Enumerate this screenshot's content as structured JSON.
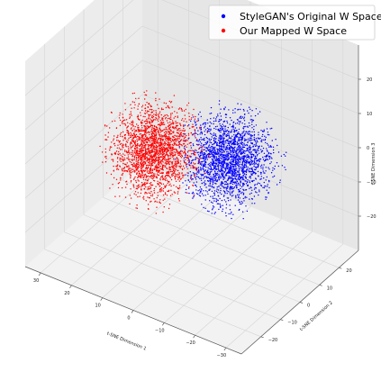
{
  "chart_data": {
    "type": "scatter",
    "projection": "3d",
    "legend": {
      "placement": "top-right",
      "entries": [
        {
          "label": "StyleGAN's Original W Space",
          "color": "#0000ff"
        },
        {
          "label": "Our Mapped W Space",
          "color": "#ff0000"
        }
      ]
    },
    "x_axis": {
      "label": "t-SNE Dimension 1",
      "range": [
        -35,
        35
      ],
      "ticks": [
        {
          "v": -30,
          "t": "−30"
        },
        {
          "v": -20,
          "t": "−20"
        },
        {
          "v": -10,
          "t": "−10"
        },
        {
          "v": 0,
          "t": "0"
        },
        {
          "v": 10,
          "t": "10"
        },
        {
          "v": 20,
          "t": "20"
        },
        {
          "v": 30,
          "t": "30"
        }
      ]
    },
    "y_axis": {
      "label": "t-SNE Dimension 2",
      "range": [
        -30,
        30
      ],
      "ticks": [
        {
          "v": -20,
          "t": "−20"
        },
        {
          "v": -10,
          "t": "−10"
        },
        {
          "v": 0,
          "t": "0"
        },
        {
          "v": 10,
          "t": "10"
        },
        {
          "v": 20,
          "t": "20"
        }
      ]
    },
    "z_axis": {
      "label": "t-SNE Dimension 3",
      "range": [
        -30,
        30
      ],
      "ticks": [
        {
          "v": -20,
          "t": "−20"
        },
        {
          "v": -10,
          "t": "−10"
        },
        {
          "v": 0,
          "t": "0"
        },
        {
          "v": 10,
          "t": "10"
        },
        {
          "v": 20,
          "t": "20"
        }
      ]
    },
    "grid": true,
    "series": [
      {
        "name": "StyleGAN's Original W Space",
        "color": "#0000ff",
        "distribution": {
          "center": [
            -12,
            0,
            3
          ],
          "spread": [
            10,
            11,
            10
          ]
        }
      },
      {
        "name": "Our Mapped W Space",
        "color": "#ff0000",
        "distribution": {
          "center": [
            12,
            0,
            -3
          ],
          "spread": [
            10,
            11,
            10
          ]
        }
      }
    ]
  }
}
